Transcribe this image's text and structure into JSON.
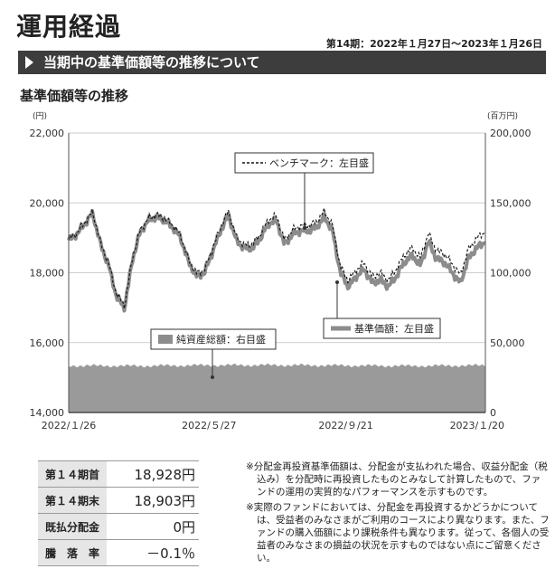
{
  "header": {
    "title": "運用経過",
    "period": "第14期：2022年１月27日～2023年１月26日",
    "banner": "当期中の基準価額等の推移について",
    "subtitle": "基準価額等の推移"
  },
  "chart_data": {
    "type": "line",
    "left_axis": {
      "unit": "(円)",
      "min": 14000,
      "max": 22000,
      "ticks": [
        "14,000",
        "16,000",
        "18,000",
        "20,000",
        "22,000"
      ]
    },
    "right_axis": {
      "unit": "(百万円)",
      "min": 0,
      "max": 200000,
      "ticks": [
        "0",
        "50,000",
        "100,000",
        "150,000",
        "200,000"
      ]
    },
    "x_ticks": [
      "2022/１/26",
      "2022/５/27",
      "2022/９/21",
      "2023/１/20"
    ],
    "x_range": [
      "2022-01-26",
      "2023-01-26"
    ],
    "grid": true,
    "legends": [
      {
        "label": "ベンチマーク：左目盛",
        "style": "dashed"
      },
      {
        "label": "基準価額：左目盛",
        "style": "thick-gray"
      },
      {
        "label": "純資産総額：右目盛",
        "style": "area"
      }
    ],
    "series": [
      {
        "name": "基準価額",
        "x": [
          "2022-01-26",
          "2022-02-02",
          "2022-02-09",
          "2022-02-16",
          "2022-02-23",
          "2022-03-02",
          "2022-03-09",
          "2022-03-16",
          "2022-03-23",
          "2022-03-30",
          "2022-04-06",
          "2022-04-13",
          "2022-04-20",
          "2022-04-27",
          "2022-05-04",
          "2022-05-11",
          "2022-05-18",
          "2022-05-25",
          "2022-06-01",
          "2022-06-08",
          "2022-06-15",
          "2022-06-22",
          "2022-06-29",
          "2022-07-06",
          "2022-07-13",
          "2022-07-20",
          "2022-07-27",
          "2022-08-03",
          "2022-08-10",
          "2022-08-17",
          "2022-08-24",
          "2022-08-31",
          "2022-09-07",
          "2022-09-14",
          "2022-09-21",
          "2022-09-28",
          "2022-10-05",
          "2022-10-12",
          "2022-10-19",
          "2022-10-26",
          "2022-11-02",
          "2022-11-09",
          "2022-11-16",
          "2022-11-23",
          "2022-11-30",
          "2022-12-07",
          "2022-12-14",
          "2022-12-21",
          "2022-12-28",
          "2023-01-04",
          "2023-01-11",
          "2023-01-18",
          "2023-01-26"
        ],
        "values": [
          18928,
          19100,
          19400,
          19700,
          18800,
          18200,
          17300,
          17000,
          18400,
          19200,
          19500,
          19600,
          19500,
          19300,
          19000,
          18300,
          17900,
          18000,
          18600,
          19200,
          19650,
          18900,
          18700,
          18700,
          19000,
          19400,
          19500,
          18800,
          19100,
          19200,
          19200,
          19300,
          19600,
          19200,
          18000,
          17600,
          17900,
          18100,
          17700,
          17800,
          17600,
          17900,
          18300,
          18500,
          18200,
          18900,
          18400,
          18300,
          18000,
          17700,
          18400,
          18700,
          18903
        ]
      },
      {
        "name": "ベンチマーク",
        "x": [
          "2022-01-26",
          "2022-02-02",
          "2022-02-09",
          "2022-02-16",
          "2022-02-23",
          "2022-03-02",
          "2022-03-09",
          "2022-03-16",
          "2022-03-23",
          "2022-03-30",
          "2022-04-06",
          "2022-04-13",
          "2022-04-20",
          "2022-04-27",
          "2022-05-04",
          "2022-05-11",
          "2022-05-18",
          "2022-05-25",
          "2022-06-01",
          "2022-06-08",
          "2022-06-15",
          "2022-06-22",
          "2022-06-29",
          "2022-07-06",
          "2022-07-13",
          "2022-07-20",
          "2022-07-27",
          "2022-08-03",
          "2022-08-10",
          "2022-08-17",
          "2022-08-24",
          "2022-08-31",
          "2022-09-07",
          "2022-09-14",
          "2022-09-21",
          "2022-09-28",
          "2022-10-05",
          "2022-10-12",
          "2022-10-19",
          "2022-10-26",
          "2022-11-02",
          "2022-11-09",
          "2022-11-16",
          "2022-11-23",
          "2022-11-30",
          "2022-12-07",
          "2022-12-14",
          "2022-12-21",
          "2022-12-28",
          "2023-01-04",
          "2023-01-11",
          "2023-01-18",
          "2023-01-26"
        ],
        "values": [
          18950,
          19130,
          19430,
          19740,
          18850,
          18260,
          17380,
          17060,
          18450,
          19250,
          19560,
          19660,
          19560,
          19360,
          19070,
          18370,
          17980,
          18080,
          18690,
          19290,
          19750,
          19000,
          18800,
          18810,
          19110,
          19520,
          19630,
          18930,
          19230,
          19340,
          19350,
          19450,
          19760,
          19360,
          18160,
          17770,
          18080,
          18280,
          17880,
          17990,
          17790,
          18100,
          18510,
          18720,
          18420,
          19130,
          18640,
          18540,
          18250,
          17950,
          18660,
          18970,
          19180
        ]
      },
      {
        "name": "純資産総額",
        "x": [
          "2022-01-26",
          "2022-03-30",
          "2022-05-27",
          "2022-07-27",
          "2022-09-21",
          "2022-11-23",
          "2023-01-26"
        ],
        "values": [
          33500,
          33300,
          33800,
          33900,
          33600,
          33300,
          33700
        ]
      }
    ]
  },
  "summary": {
    "rows": [
      {
        "label": "第１４期首",
        "value": "18,928円"
      },
      {
        "label": "第１４期末",
        "value": "18,903円"
      },
      {
        "label": "既払分配金",
        "value": "0円"
      },
      {
        "label": "騰　落　率",
        "value": "－0.1％"
      }
    ]
  },
  "notes": [
    "※分配金再投資基準価額は、分配金が支払われた場合、収益分配金（税込み）を分配時に再投資したものとみなして計算したもので、ファンドの運用の実質的なパフォーマンスを示すものです。",
    "※実際のファンドにおいては、分配金を再投資するかどうかについては、受益者のみなさまがご利用のコースにより異なります。また、ファンドの購入価額により課税条件も異なります。従って、各個人の受益者のみなさまの損益の状況を示すものではない点にご留意ください。"
  ]
}
